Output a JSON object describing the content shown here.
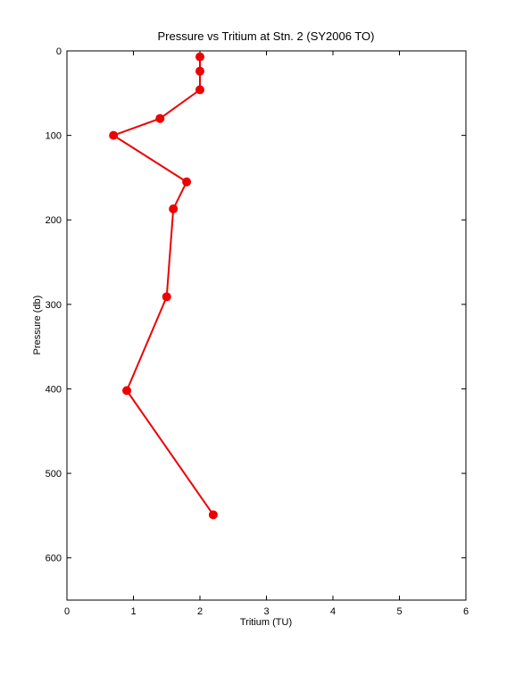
{
  "chart_data": {
    "type": "line",
    "title": "Pressure vs Tritium at Stn. 2 (SY2006 TO)",
    "x_label": "Tritium (TU)",
    "y_label": "Pressure (db)",
    "x": [
      2.0,
      2.0,
      2.0,
      1.4,
      0.7,
      1.8,
      1.6,
      1.5,
      0.9,
      2.2
    ],
    "series": [
      {
        "color": "#ee0000",
        "values": [
          7,
          24,
          46,
          80,
          100,
          155,
          187,
          291,
          402,
          549
        ]
      }
    ],
    "xlim": [
      0,
      6
    ],
    "xticks": [
      0,
      1,
      2,
      3,
      4,
      5,
      6
    ],
    "ylim": [
      0,
      650
    ],
    "yticks": [
      0,
      100,
      200,
      300,
      400,
      500,
      600
    ],
    "y_reversed": true,
    "markers": true
  }
}
